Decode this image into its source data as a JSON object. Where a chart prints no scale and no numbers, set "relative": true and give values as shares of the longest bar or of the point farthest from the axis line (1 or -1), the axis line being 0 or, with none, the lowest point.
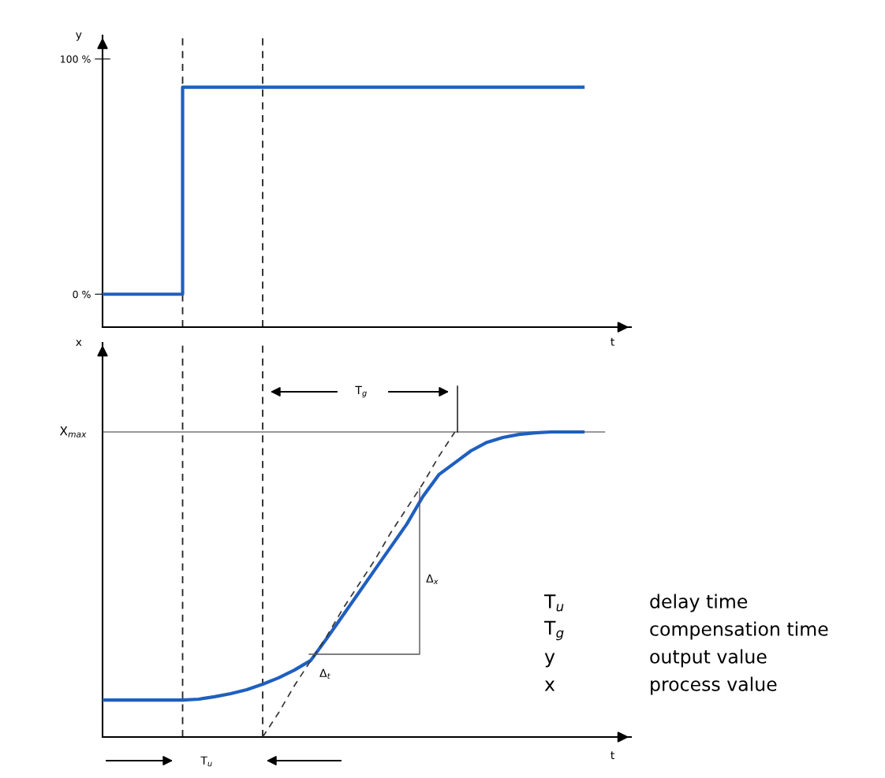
{
  "chart_data": [
    {
      "type": "step",
      "ylabel": "y",
      "xlabel": "t",
      "categories": [
        null,
        null,
        null,
        null,
        null,
        null,
        null,
        null,
        null,
        null,
        null,
        null,
        null,
        null,
        null,
        null,
        null,
        null,
        null,
        null,
        null,
        null,
        null,
        null,
        null,
        null,
        null,
        null,
        null,
        null,
        null
      ],
      "series": [
        {
          "color": "#1f5fbf",
          "values": [
            0,
            0,
            0,
            0,
            0,
            88,
            88,
            88,
            88,
            88,
            88,
            88,
            88,
            88,
            88,
            88,
            88,
            88,
            88,
            88,
            88,
            88,
            88,
            88,
            88,
            88,
            88,
            88,
            88,
            88,
            88
          ]
        }
      ],
      "ylim": [
        -14,
        110
      ],
      "yticks": [
        {
          "value": 0,
          "label": "0 %"
        },
        {
          "value": 100,
          "label": "100 %"
        }
      ],
      "tick_labels": "y"
    },
    {
      "type": "line",
      "ylabel": "x",
      "xlabel": "t",
      "relative": true,
      "tick_labels": false,
      "categories": [
        null,
        null,
        null,
        null,
        null,
        null,
        null,
        null,
        null,
        null,
        null,
        null,
        null,
        null,
        null,
        null,
        null,
        null,
        null,
        null,
        null,
        null,
        null,
        null,
        null,
        null,
        null,
        null,
        null,
        null,
        null
      ],
      "series": [
        {
          "color": "#1f5fbf",
          "values": [
            0.121,
            0.121,
            0.121,
            0.121,
            0.121,
            0.121,
            0.124,
            0.132,
            0.142,
            0.155,
            0.173,
            0.194,
            0.22,
            0.251,
            0.323,
            0.398,
            0.473,
            0.548,
            0.623,
            0.698,
            0.788,
            0.86,
            0.899,
            0.938,
            0.966,
            0.982,
            0.992,
            0.997,
            1,
            1,
            1
          ]
        },
        {
          "type": "line",
          "color": "#333333",
          "line_style": "dashed",
          "values": [
            null,
            null,
            null,
            null,
            null,
            null,
            null,
            null,
            null,
            null,
            0,
            0.08,
            0.17,
            0.25,
            0.33,
            0.42,
            0.5,
            0.58,
            0.67,
            0.75,
            0.83,
            0.92,
            1,
            null,
            null,
            null,
            null,
            null,
            null,
            null,
            null
          ]
        }
      ],
      "ref_lines": [
        {
          "axis": "y",
          "value": 1,
          "label": "X$_{max}$",
          "color": "#777777",
          "line_style": "solid"
        }
      ],
      "annotations": [
        "T$_{g}$",
        "Δ$_{x}$",
        "Δ$_{t}$",
        "T$_{u}$",
        "T$_{u}$",
        "T$_{g}$",
        "y",
        "x",
        "delay time",
        "compensation time",
        "output value",
        "process value"
      ]
    }
  ]
}
